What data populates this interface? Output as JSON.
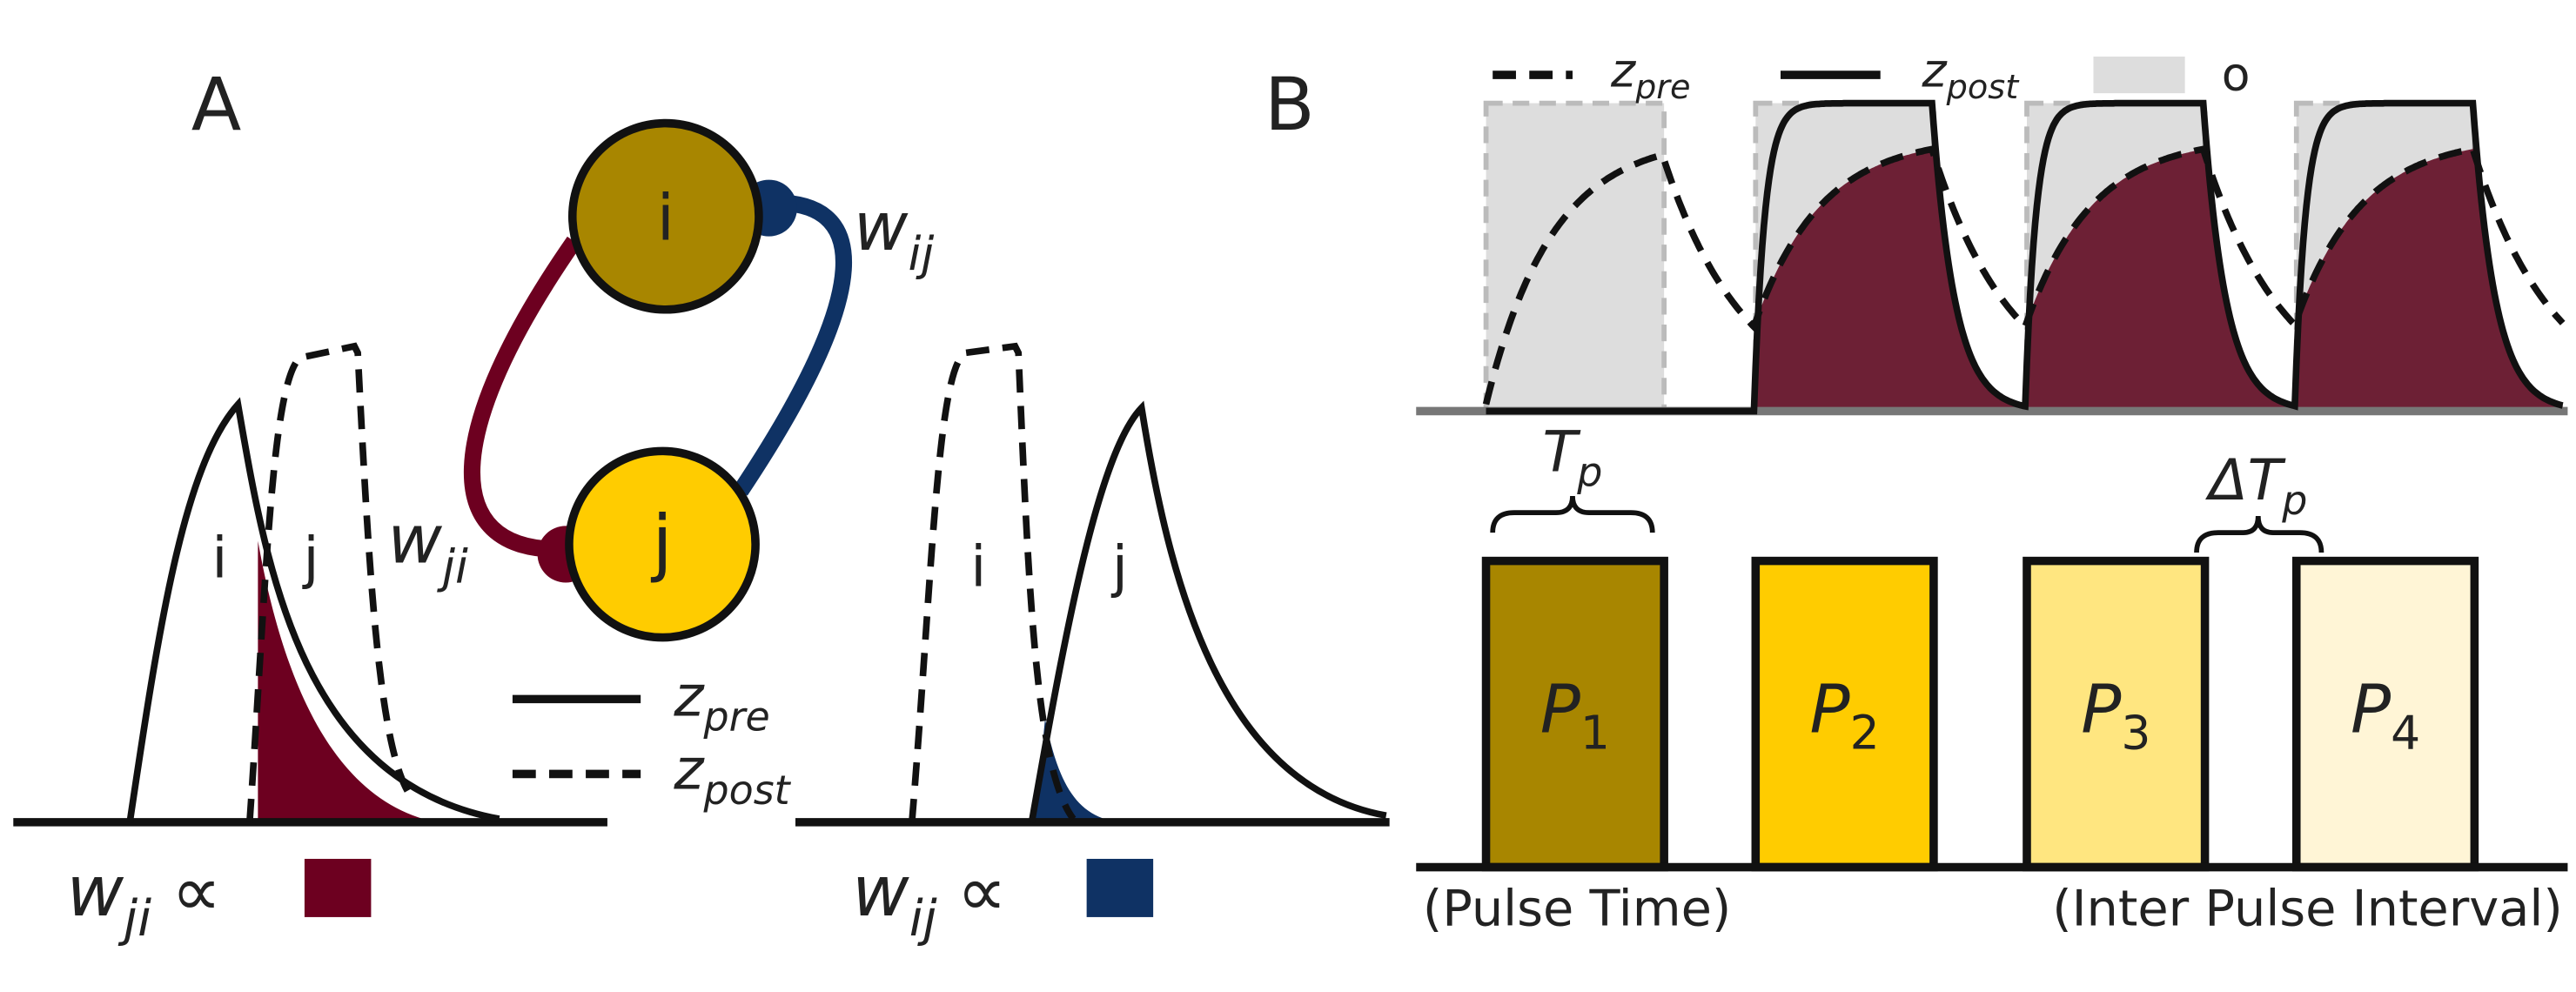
{
  "panel_a": {
    "label": "A",
    "nodes": [
      "i",
      "j"
    ],
    "weight_ij": {
      "symbol": "w",
      "subscript": "ij"
    },
    "weight_ji": {
      "symbol": "w",
      "subscript": "ji"
    },
    "legend": [
      {
        "symbol": "z",
        "subscript": "pre"
      },
      {
        "symbol": "z",
        "subscript": "post"
      }
    ],
    "left_curve_labels": [
      "i",
      "j"
    ],
    "right_curve_labels": [
      "i",
      "j"
    ],
    "proportional": "∝"
  },
  "panel_b": {
    "label": "B",
    "legend": [
      {
        "symbol": "z",
        "subscript": "pre"
      },
      {
        "symbol": "z",
        "subscript": "post"
      },
      {
        "symbol": "o"
      }
    ],
    "pulse_width": {
      "symbol": "T",
      "subscript": "p"
    },
    "interval": {
      "symbol": "ΔT",
      "subscript": "p"
    },
    "pulses": [
      {
        "symbol": "P",
        "subscript": "1"
      },
      {
        "symbol": "P",
        "subscript": "2"
      },
      {
        "symbol": "P",
        "subscript": "3"
      },
      {
        "symbol": "P",
        "subscript": "4"
      }
    ],
    "captions": [
      "(Pulse Time)",
      "(Inter Pulse Interval)"
    ]
  }
}
